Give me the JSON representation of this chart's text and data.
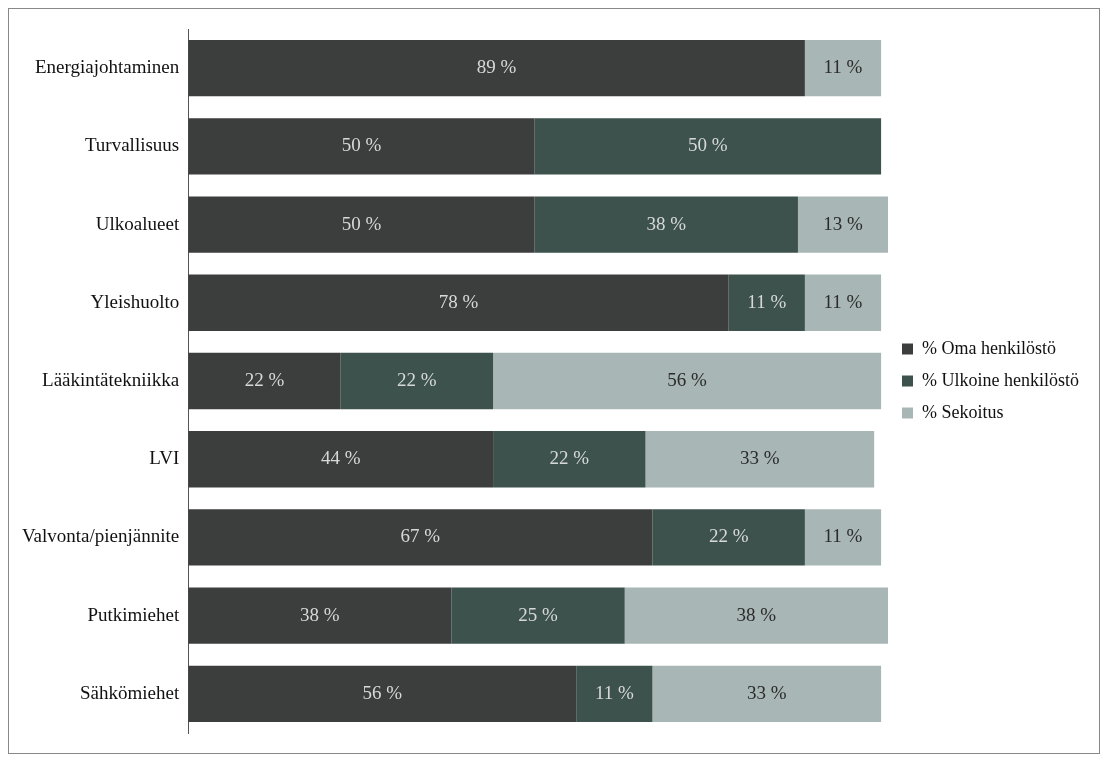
{
  "chart_data": {
    "type": "bar",
    "orientation": "horizontal",
    "stacked": true,
    "legend": "right",
    "grid": false,
    "categories": [
      "Energiajohtaminen",
      "Turvallisuus",
      "Ulkoalueet",
      "Yleishuolto",
      "Lääkintätekniikka",
      "LVI",
      "Valvonta/pienjännite",
      "Putkimiehet",
      "Sähkömiehet"
    ],
    "series": [
      {
        "name": "% Oma henkilöstö",
        "color": "#3c3e3d",
        "values": [
          89,
          50,
          50,
          78,
          22,
          44,
          67,
          38,
          56
        ],
        "value_labels": [
          "89 %",
          "50 %",
          "50 %",
          "78 %",
          "22 %",
          "44 %",
          "67 %",
          "38 %",
          "56 %"
        ]
      },
      {
        "name": "% Ulkoine henkilöstö",
        "color": "#3d524c",
        "values": [
          null,
          50,
          38,
          11,
          22,
          22,
          22,
          25,
          11
        ],
        "value_labels": [
          null,
          "50 %",
          "38 %",
          "11 %",
          "22 %",
          "22 %",
          "22 %",
          "25 %",
          "11 %"
        ]
      },
      {
        "name": "% Sekoitus",
        "color": "#a8b6b5",
        "values": [
          11,
          null,
          13,
          11,
          56,
          33,
          11,
          38,
          33
        ],
        "value_labels": [
          "11 %",
          null,
          "13 %",
          "11 %",
          "56 %",
          "33 %",
          "11 %",
          "38 %",
          "33 %"
        ]
      }
    ]
  }
}
